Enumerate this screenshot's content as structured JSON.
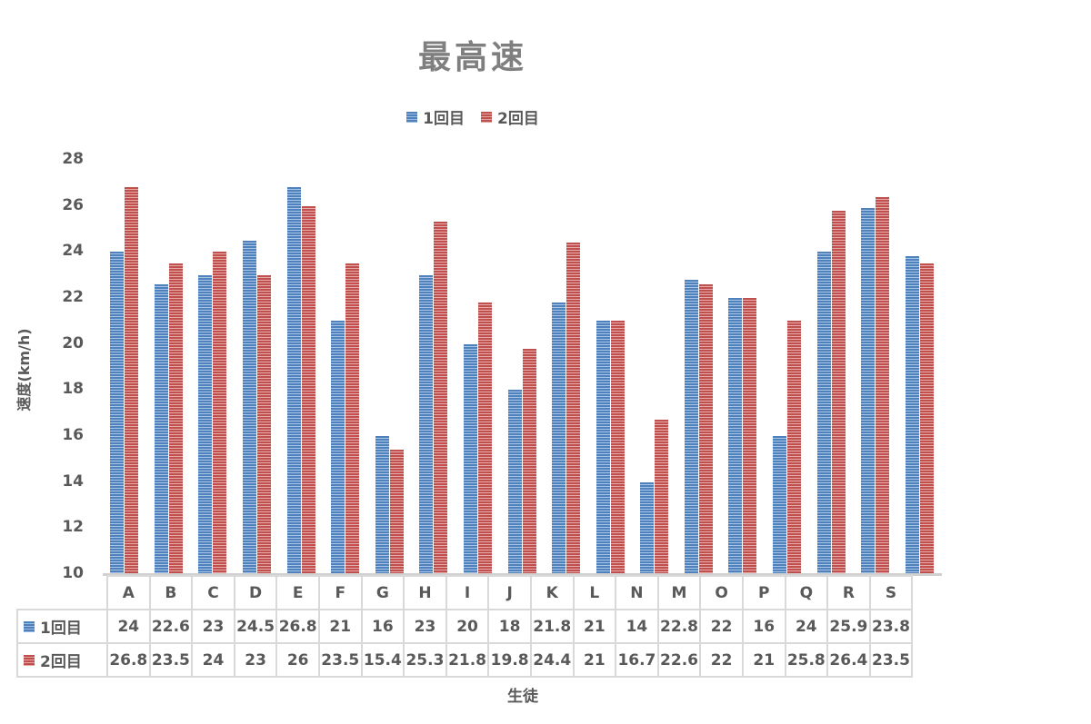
{
  "chart_data": {
    "type": "bar",
    "title": "最高速",
    "xlabel": "生徒",
    "ylabel": "速度(km/h)",
    "ylim": [
      10,
      28
    ],
    "yticks": [
      10,
      12,
      14,
      16,
      18,
      20,
      22,
      24,
      26,
      28
    ],
    "legend_position": "top",
    "grid": false,
    "data_table": true,
    "categories": [
      "A",
      "B",
      "C",
      "D",
      "E",
      "F",
      "G",
      "H",
      "I",
      "J",
      "K",
      "L",
      "N",
      "M",
      "O",
      "P",
      "Q",
      "R",
      "S"
    ],
    "series": [
      {
        "name": "1回目",
        "color": "#4f81bd",
        "values": [
          24,
          22.6,
          23,
          24.5,
          26.8,
          21,
          16,
          23,
          20,
          18,
          21.8,
          21,
          14,
          22.8,
          22,
          16,
          24,
          25.9,
          23.8
        ]
      },
      {
        "name": "2回目",
        "color": "#c0504d",
        "values": [
          26.8,
          23.5,
          24,
          23,
          26,
          23.5,
          15.4,
          25.3,
          21.8,
          19.8,
          24.4,
          21,
          16.7,
          22.6,
          22,
          21,
          25.8,
          26.4,
          23.5
        ]
      }
    ]
  }
}
